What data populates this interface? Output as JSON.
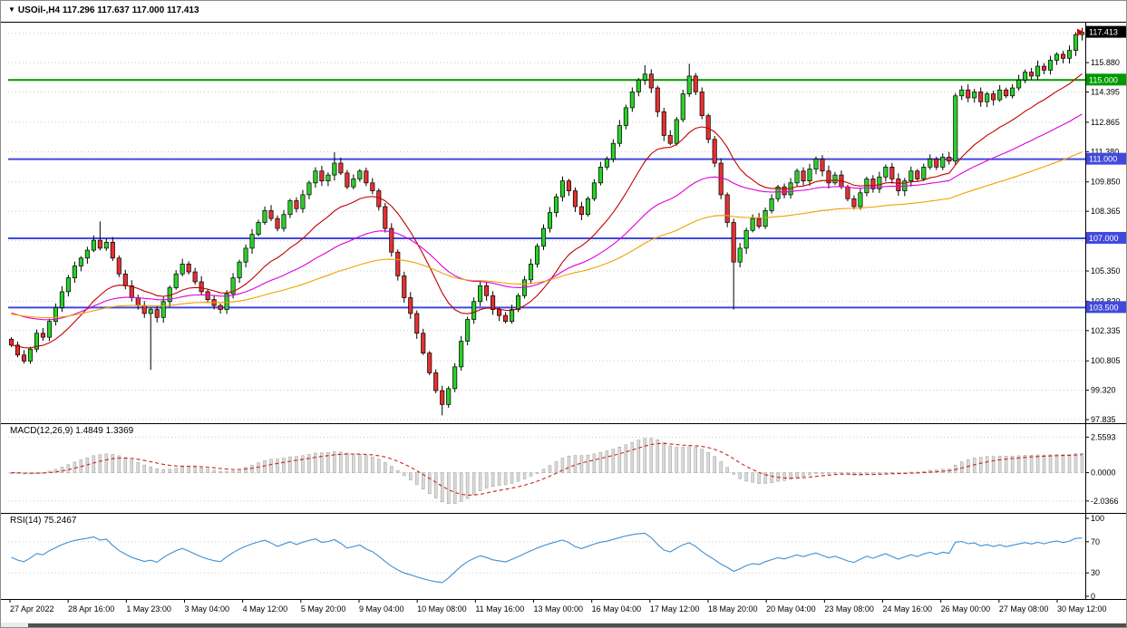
{
  "window": {
    "collapse_icon": "▼",
    "title_text": "USOil-,H4 117.296 117.637 117.000 117.413",
    "symbol": "USOil-",
    "period": "H4",
    "open": "117.296",
    "high": "117.637",
    "low": "117.000",
    "close": "117.413"
  },
  "indicators": {
    "macd": {
      "label_text": "MACD(12,26,9) 1.4849 1.3369",
      "macd_value": 1.4849,
      "signal_value": 1.3369
    },
    "rsi": {
      "label_text": "RSI(14) 75.2467",
      "value": 75.2467
    }
  },
  "price_axis": {
    "current_price": "117.413"
  },
  "colors": {
    "background": "#FFFFFF",
    "frame": "#000000",
    "grid": "#C8C8C8",
    "wick": "#000000",
    "bull": "#2BCF2B",
    "bear": "#E53030",
    "macd_hist_fill": "#DADADA",
    "macd_hist_stroke": "#9C9C9C",
    "macd_signal": "#CC2222",
    "rsi_line": "#3F8FD2",
    "price_badge_current": "#000000"
  },
  "chart_data": {
    "type": "candlestick",
    "title": "USOil-,H4",
    "symbol": "USOil-",
    "timeframe": "H4",
    "ylim": [
      97.7,
      117.9
    ],
    "y_ticks": [
      115.88,
      114.395,
      112.865,
      111.38,
      109.85,
      108.365,
      105.35,
      103.82,
      102.335,
      100.805,
      99.32,
      97.835
    ],
    "y_ticks_hidden": [
      117.365,
      106.88
    ],
    "x_labels": [
      "27 Apr 2022",
      "28 Apr 16:00",
      "1 May 23:00",
      "3 May 04:00",
      "4 May 12:00",
      "5 May 20:00",
      "9 May 04:00",
      "10 May 08:00",
      "11 May 16:00",
      "13 May 00:00",
      "16 May 04:00",
      "17 May 12:00",
      "18 May 20:00",
      "20 May 04:00",
      "23 May 08:00",
      "24 May 16:00",
      "26 May 00:00",
      "27 May 08:00",
      "30 May 12:00"
    ],
    "first_open": 101.9,
    "closes": [
      101.6,
      101.1,
      100.8,
      101.4,
      102.2,
      102.0,
      102.8,
      103.5,
      104.3,
      105.0,
      105.6,
      106.0,
      106.4,
      106.9,
      106.5,
      106.8,
      106.0,
      105.2,
      104.6,
      104.0,
      103.6,
      103.2,
      103.4,
      103.0,
      103.8,
      104.5,
      105.2,
      105.7,
      105.3,
      104.8,
      104.3,
      103.9,
      103.6,
      103.4,
      104.2,
      105.0,
      105.8,
      106.5,
      107.2,
      107.8,
      108.4,
      108.0,
      107.5,
      108.2,
      108.9,
      108.5,
      109.2,
      109.8,
      110.4,
      109.9,
      110.2,
      110.8,
      110.3,
      109.6,
      110.0,
      110.4,
      109.8,
      109.4,
      108.6,
      107.5,
      106.3,
      105.1,
      104.0,
      103.2,
      102.2,
      101.2,
      100.2,
      99.3,
      98.6,
      99.4,
      100.5,
      101.8,
      102.9,
      103.8,
      104.6,
      104.1,
      103.4,
      103.1,
      102.8,
      103.4,
      104.1,
      104.9,
      105.7,
      106.6,
      107.5,
      108.3,
      109.1,
      109.9,
      109.4,
      108.6,
      108.2,
      109.0,
      109.8,
      110.6,
      111.0,
      111.8,
      112.7,
      113.6,
      114.4,
      115.0,
      115.3,
      114.6,
      113.4,
      112.2,
      111.8,
      113.0,
      114.3,
      115.2,
      114.4,
      113.2,
      112.0,
      110.8,
      109.2,
      107.8,
      105.8,
      106.5,
      107.4,
      108.0,
      107.6,
      108.4,
      109.0,
      109.6,
      109.2,
      109.8,
      110.4,
      109.9,
      110.5,
      111.0,
      110.4,
      109.8,
      110.2,
      109.6,
      109.0,
      108.6,
      109.3,
      110.0,
      109.5,
      110.1,
      110.6,
      110.0,
      109.4,
      109.9,
      110.4,
      110.0,
      110.6,
      111.0,
      110.6,
      111.1,
      110.9,
      114.2,
      114.5,
      114.1,
      114.4,
      113.9,
      114.3,
      114.0,
      114.5,
      114.2,
      114.6,
      115.0,
      115.4,
      115.2,
      115.7,
      115.5,
      116.0,
      116.3,
      116.1,
      116.5,
      117.296,
      117.413
    ],
    "last_candle": {
      "open": 117.296,
      "high": 117.637,
      "low": 117.0,
      "close": 117.413
    },
    "wick_overrides": {
      "14": {
        "high": 107.85
      },
      "22": {
        "low": 100.35
      },
      "51": {
        "high": 111.35
      },
      "68": {
        "low": 98.05
      },
      "100": {
        "high": 115.75
      },
      "107": {
        "high": 115.82
      },
      "114": {
        "low": 103.4
      },
      "169": {
        "high": 117.637,
        "low": 117.0
      }
    },
    "levels": [
      {
        "value": 115.0,
        "label": "115.000",
        "line_color": "#009900",
        "badge_color": "#009900"
      },
      {
        "value": 111.0,
        "label": "111.000",
        "line_color": "#4149DD",
        "badge_color": "#4149DD"
      },
      {
        "value": 107.0,
        "label": "107.000",
        "line_color": "#4149DD",
        "badge_color": "#4149DD"
      },
      {
        "value": 103.5,
        "label": "103.500",
        "line_color": "#4149DD",
        "badge_color": "#4149DD"
      }
    ],
    "current_price": 117.413,
    "moving_averages": [
      {
        "type": "ema",
        "period": 18,
        "color": "#C00000",
        "seed": 101.6
      },
      {
        "type": "ema",
        "period": 45,
        "color": "#DD00DD",
        "seed": 103.3
      },
      {
        "type": "ema",
        "period": 90,
        "color": "#F0A000",
        "seed": 103.2
      }
    ],
    "sub_charts": [
      {
        "type": "macd",
        "label": "MACD(12,26,9)",
        "fast": 12,
        "slow": 26,
        "signal": 9,
        "last_macd": 1.4849,
        "last_signal": 1.3369,
        "ylim": [
          -2.7,
          3.3
        ],
        "y_ticks": [
          2.5593,
          0,
          -2.0366
        ]
      },
      {
        "type": "rsi",
        "label": "RSI(14)",
        "period": 14,
        "last": 75.2467,
        "ylim": [
          0,
          100
        ],
        "y_ticks": [
          100,
          70,
          30,
          0
        ],
        "levels": [
          70,
          30
        ]
      }
    ]
  }
}
